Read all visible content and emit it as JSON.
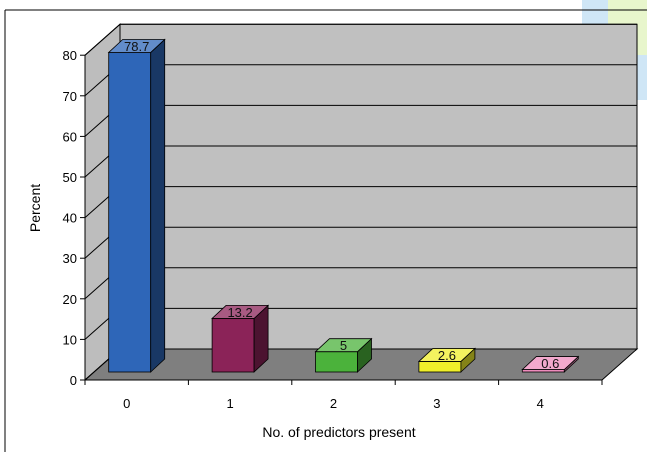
{
  "chart_data": {
    "type": "bar",
    "categories": [
      "0",
      "1",
      "2",
      "3",
      "4"
    ],
    "values": [
      78.7,
      13.2,
      5,
      2.6,
      0.6
    ],
    "data_labels": [
      "78.7",
      "13.2",
      "5",
      "2.6",
      "0.6"
    ],
    "xlabel": "No. of predictors present",
    "ylabel": "Percent",
    "ylim": [
      0,
      80
    ],
    "yticks": [
      0,
      10,
      20,
      30,
      40,
      50,
      60,
      70,
      80
    ],
    "grid": true,
    "style": "3d",
    "colors": [
      "#2e66b8",
      "#8b2358",
      "#4bb23b",
      "#f0ef2a",
      "#ee8cbc"
    ]
  }
}
